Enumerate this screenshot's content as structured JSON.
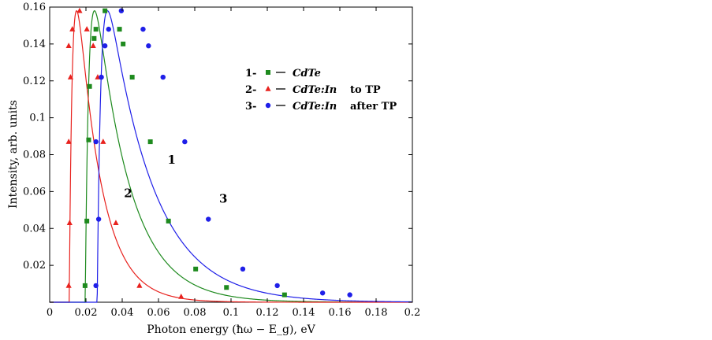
{
  "chart_data": {
    "type": "scatter",
    "title": "",
    "xlabel": "Photon energy (ħω − E_g), eV",
    "ylabel": "Intensity, arb. units",
    "xlim": [
      0,
      0.2
    ],
    "ylim": [
      0,
      0.16
    ],
    "xticks": [
      0,
      0.02,
      0.04,
      0.06,
      0.08,
      0.1,
      0.12,
      0.14,
      0.16,
      0.18,
      0.2
    ],
    "xtick_labels": [
      "0",
      "0.02",
      "0.04",
      "0.06",
      "0.08",
      "0.1",
      "0.12",
      "0.14",
      "0.16",
      "0.18",
      "0.2"
    ],
    "yticks": [
      0.02,
      0.04,
      0.06,
      0.08,
      0.1,
      0.12,
      0.14,
      0.16
    ],
    "ytick_labels": [
      "0.02",
      "0.04",
      "0.06",
      "0.08",
      "0.1",
      "0.12",
      "0.14",
      "0.16"
    ],
    "series": [
      {
        "id": "1",
        "name": "CdTe",
        "legend_prefix": "1-",
        "legend_suffix": "",
        "marker": "square",
        "color": "#1e8a1e",
        "curve_label": "1",
        "curve_label_at": [
          0.065,
          0.075
        ],
        "fit": {
          "x0": 0.0196,
          "tau_rise": 0.0023,
          "tau_decay": 0.0188
        },
        "points": [
          [
            0.0195,
            0.009
          ],
          [
            0.0205,
            0.044
          ],
          [
            0.0215,
            0.088
          ],
          [
            0.022,
            0.117
          ],
          [
            0.0245,
            0.143
          ],
          [
            0.0255,
            0.148
          ],
          [
            0.0305,
            0.158
          ],
          [
            0.0385,
            0.148
          ],
          [
            0.0405,
            0.14
          ],
          [
            0.0455,
            0.122
          ],
          [
            0.0555,
            0.087
          ],
          [
            0.0655,
            0.044
          ],
          [
            0.0805,
            0.018
          ],
          [
            0.0975,
            0.008
          ],
          [
            0.1295,
            0.004
          ]
        ]
      },
      {
        "id": "2",
        "name": "CdTe:In",
        "legend_prefix": "2-",
        "legend_suffix": "to TP",
        "marker": "triangle",
        "color": "#e8221e",
        "curve_label": "2",
        "curve_label_at": [
          0.041,
          0.057
        ],
        "fit": {
          "x0": 0.0108,
          "tau_rise": 0.002,
          "tau_decay": 0.013
        },
        "points": [
          [
            0.0105,
            0.009
          ],
          [
            0.011,
            0.043
          ],
          [
            0.0105,
            0.087
          ],
          [
            0.0115,
            0.122
          ],
          [
            0.0105,
            0.139
          ],
          [
            0.0125,
            0.148
          ],
          [
            0.0165,
            0.158
          ],
          [
            0.0205,
            0.148
          ],
          [
            0.024,
            0.139
          ],
          [
            0.0265,
            0.122
          ],
          [
            0.0295,
            0.087
          ],
          [
            0.0365,
            0.043
          ],
          [
            0.0495,
            0.009
          ],
          [
            0.0725,
            0.003
          ]
        ]
      },
      {
        "id": "3",
        "name": "CdTe:In",
        "legend_prefix": "3-",
        "legend_suffix": "after TP",
        "marker": "circle",
        "color": "#1f1fe8",
        "curve_label": "3",
        "curve_label_at": [
          0.0935,
          0.054
        ],
        "fit": {
          "x0": 0.0262,
          "tau_rise": 0.0023,
          "tau_decay": 0.0247
        },
        "points": [
          [
            0.0255,
            0.009
          ],
          [
            0.027,
            0.045
          ],
          [
            0.0255,
            0.087
          ],
          [
            0.0285,
            0.122
          ],
          [
            0.0305,
            0.139
          ],
          [
            0.0325,
            0.148
          ],
          [
            0.0395,
            0.158
          ],
          [
            0.0515,
            0.148
          ],
          [
            0.0545,
            0.139
          ],
          [
            0.0625,
            0.122
          ],
          [
            0.0745,
            0.087
          ],
          [
            0.0875,
            0.045
          ],
          [
            0.1065,
            0.018
          ],
          [
            0.1255,
            0.009
          ],
          [
            0.1505,
            0.005
          ],
          [
            0.1655,
            0.004
          ]
        ]
      }
    ],
    "legend": {
      "position": "center-right inside plot"
    }
  }
}
